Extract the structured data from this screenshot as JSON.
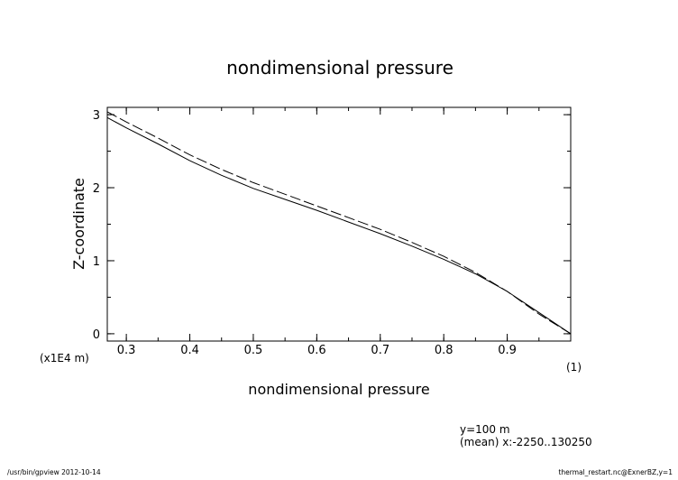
{
  "chart_data": {
    "type": "line",
    "title": "nondimensional pressure",
    "xlabel": "nondimensional pressure",
    "xunit": "(1)",
    "ylabel": "Z-coordinate",
    "yunit": "(x1E4 m)",
    "xlim": [
      0.27,
      1.0
    ],
    "ylim": [
      -0.1,
      3.1
    ],
    "xticks": [
      0.3,
      0.4,
      0.5,
      0.6,
      0.7,
      0.8,
      0.9
    ],
    "yticks": [
      0,
      1,
      2,
      3
    ],
    "grid": false,
    "series": [
      {
        "style": "solid",
        "x": [
          1.0,
          0.95,
          0.9,
          0.85,
          0.8,
          0.75,
          0.7,
          0.65,
          0.6,
          0.55,
          0.5,
          0.45,
          0.4,
          0.35,
          0.3,
          0.27
        ],
        "y": [
          0.0,
          0.29,
          0.58,
          0.82,
          1.02,
          1.2,
          1.37,
          1.53,
          1.69,
          1.84,
          1.99,
          2.17,
          2.37,
          2.6,
          2.82,
          2.96
        ]
      },
      {
        "style": "dashed",
        "x": [
          1.0,
          0.95,
          0.9,
          0.85,
          0.8,
          0.75,
          0.7,
          0.65,
          0.6,
          0.55,
          0.5,
          0.45,
          0.4,
          0.35,
          0.3,
          0.27
        ],
        "y": [
          0.0,
          0.27,
          0.58,
          0.84,
          1.06,
          1.25,
          1.43,
          1.59,
          1.75,
          1.91,
          2.07,
          2.25,
          2.45,
          2.68,
          2.9,
          3.04
        ]
      }
    ]
  },
  "info": {
    "line1": "y=100 m",
    "line2": "(mean) x:-2250..130250"
  },
  "footer": {
    "left": "/usr/bin/gpview   2012-10-14",
    "right": "thermal_restart.nc@ExnerBZ,y=1"
  }
}
